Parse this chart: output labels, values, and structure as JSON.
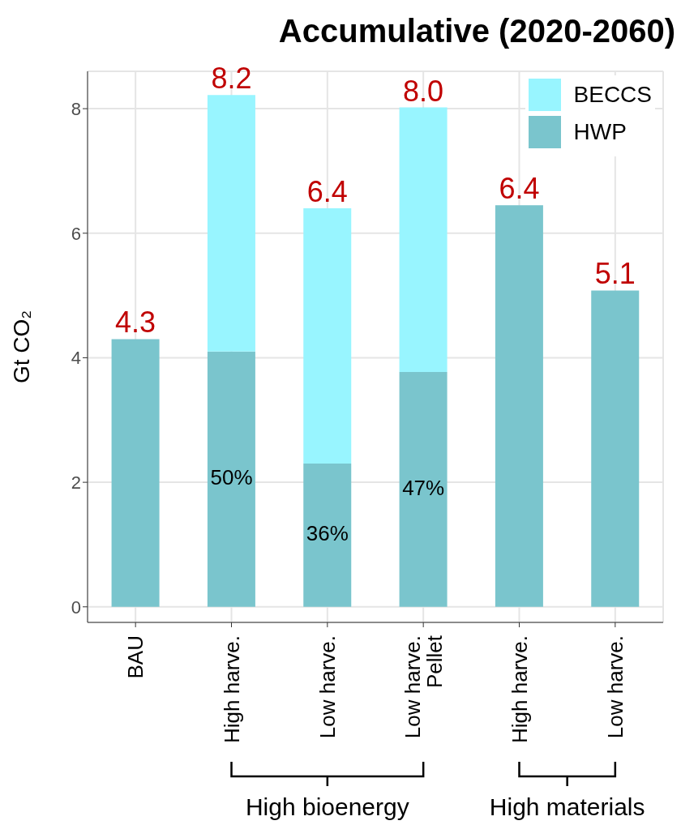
{
  "chart_data": {
    "type": "bar",
    "title": "Accumulative (2020-2060)",
    "ylabel": "Gt CO₂",
    "categories": [
      "BAU",
      "High harve.",
      "Low harve.",
      "Low harve.\nPellet",
      "High harve.",
      "Low harve."
    ],
    "stacked": true,
    "series": [
      {
        "name": "HWP",
        "color": "#7ac5cd",
        "values": [
          4.3,
          4.1,
          2.3,
          3.77,
          6.45,
          5.08
        ]
      },
      {
        "name": "BECCS",
        "color": "#98f5ff",
        "values": [
          null,
          4.12,
          4.1,
          4.25,
          null,
          null
        ]
      }
    ],
    "totals": [
      "4.3",
      "8.2",
      "6.4",
      "8.0",
      "6.4",
      "5.1"
    ],
    "ylim": [
      -0.25,
      8.6
    ],
    "yticks": [
      0,
      2,
      4,
      6,
      8
    ],
    "grid": true,
    "legend": "top right",
    "annotations": [
      "High bioenergy",
      "High materials",
      "50%",
      "36%",
      "47%"
    ]
  }
}
